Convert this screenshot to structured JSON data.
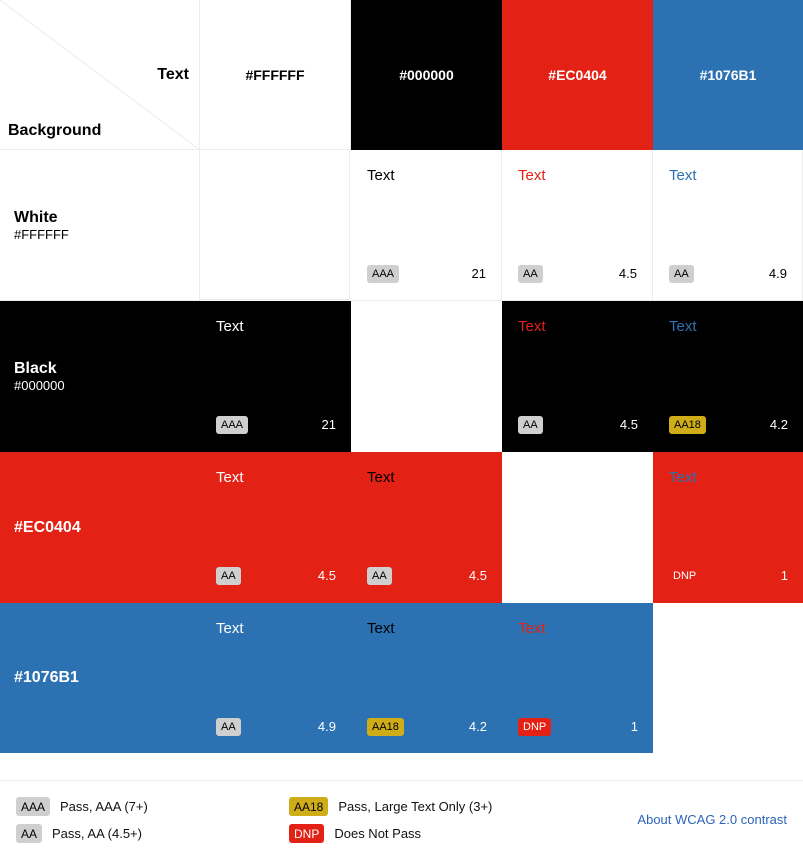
{
  "corner": {
    "text_label": "Text",
    "background_label": "Background"
  },
  "columns": [
    {
      "hex": "#FFFFFF",
      "bg": "#FFFFFF",
      "fg": "#000000"
    },
    {
      "hex": "#000000",
      "bg": "#000000",
      "fg": "#FFFFFF"
    },
    {
      "hex": "#EC0404",
      "bg": "#E32114",
      "fg": "#FFFFFF"
    },
    {
      "hex": "#1076B1",
      "bg": "#2C71B1",
      "fg": "#FFFFFF"
    }
  ],
  "rows": [
    {
      "name": "White",
      "hex": "#FFFFFF",
      "bg": "#FFFFFF",
      "fg": "#000000"
    },
    {
      "name": "Black",
      "hex": "#000000",
      "bg": "#000000",
      "fg": "#FFFFFF"
    },
    {
      "name": "",
      "hex": "#EC0404",
      "bg": "#E32114",
      "fg": "#FFFFFF"
    },
    {
      "name": "",
      "hex": "#1076B1",
      "bg": "#2C71B1",
      "fg": "#FFFFFF"
    }
  ],
  "combos": [
    [
      null,
      {
        "sample": "Text",
        "text_color": "#000000",
        "badge": "AAA",
        "ratio": "21"
      },
      {
        "sample": "Text",
        "text_color": "#E32114",
        "badge": "AA",
        "ratio": "4.5"
      },
      {
        "sample": "Text",
        "text_color": "#2C71B1",
        "badge": "AA",
        "ratio": "4.9"
      }
    ],
    [
      {
        "sample": "Text",
        "text_color": "#FFFFFF",
        "badge": "AAA",
        "ratio": "21"
      },
      null,
      {
        "sample": "Text",
        "text_color": "#E32114",
        "badge": "AA",
        "ratio": "4.5"
      },
      {
        "sample": "Text",
        "text_color": "#2C71B1",
        "badge": "AA18",
        "ratio": "4.2"
      }
    ],
    [
      {
        "sample": "Text",
        "text_color": "#FFFFFF",
        "badge": "AA",
        "ratio": "4.5"
      },
      {
        "sample": "Text",
        "text_color": "#000000",
        "badge": "AA",
        "ratio": "4.5"
      },
      null,
      {
        "sample": "Text",
        "text_color": "#2C71B1",
        "badge": "DNP",
        "badge_style": "plain",
        "ratio": "1"
      }
    ],
    [
      {
        "sample": "Text",
        "text_color": "#FFFFFF",
        "badge": "AA",
        "ratio": "4.9"
      },
      {
        "sample": "Text",
        "text_color": "#000000",
        "badge": "AA18",
        "ratio": "4.2"
      },
      {
        "sample": "Text",
        "text_color": "#E32114",
        "badge": "DNP",
        "ratio": "1"
      },
      null
    ]
  ],
  "legend": {
    "aaa": {
      "badge": "AAA",
      "label": "Pass, AAA (7+)"
    },
    "aa": {
      "badge": "AA",
      "label": "Pass, AA (4.5+)"
    },
    "aa18": {
      "badge": "AA18",
      "label": "Pass, Large Text Only (3+)"
    },
    "dnp": {
      "badge": "DNP",
      "label": "Does Not Pass"
    },
    "link_text": "About WCAG 2.0 contrast"
  }
}
